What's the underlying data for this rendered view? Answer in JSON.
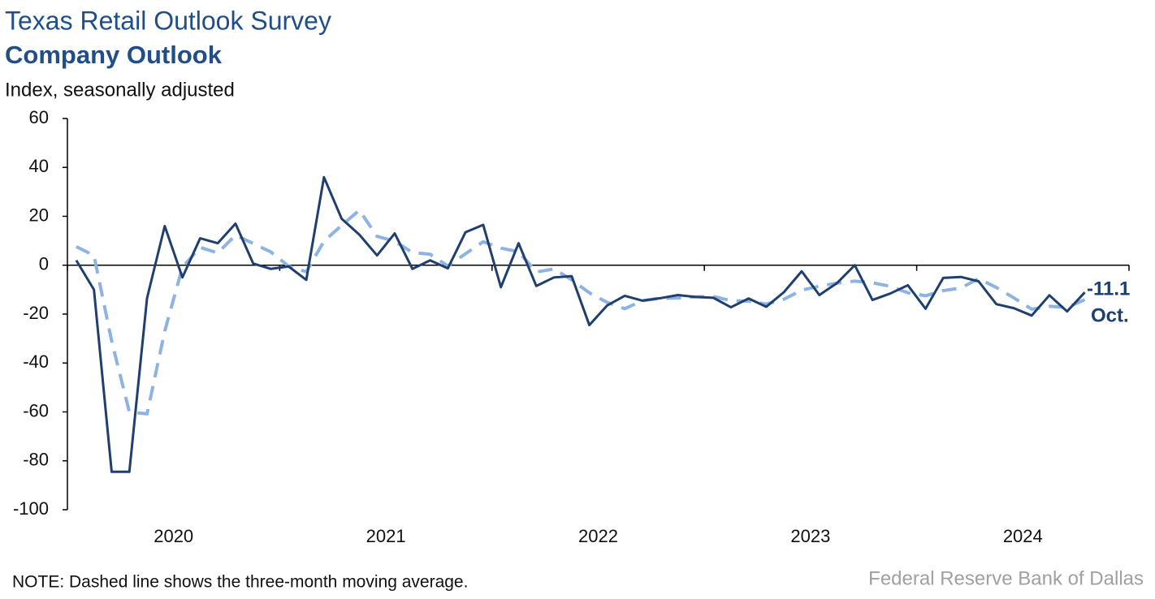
{
  "chart_data": {
    "type": "line",
    "title": "Texas Retail Outlook Survey",
    "subtitle": "Company Outlook",
    "y_label": "Index, seasonally adjusted",
    "note": "NOTE: Dashed line shows the three-month moving average.",
    "source": "Federal Reserve Bank of Dallas",
    "year_labels": [
      "2020",
      "2021",
      "2022",
      "2023",
      "2024"
    ],
    "categories": [
      null,
      null,
      null,
      null,
      null,
      null,
      null,
      null,
      null,
      null,
      null,
      null,
      null,
      null,
      null,
      null,
      null,
      null,
      null,
      null,
      null,
      null,
      null,
      null,
      null,
      null,
      null,
      null,
      null,
      null,
      null,
      null,
      null,
      null,
      null,
      null,
      null,
      null,
      null,
      null,
      null,
      null,
      null,
      null,
      null,
      null,
      null,
      null,
      null,
      null,
      null,
      null,
      null,
      null,
      null,
      null,
      null,
      null
    ],
    "ylim": [
      -100,
      60
    ],
    "yticks": [
      60,
      40,
      20,
      0,
      -20,
      -40,
      -60,
      -80,
      -100
    ],
    "series": [
      {
        "name": "Company outlook",
        "color": "#1f3f6e",
        "dashed": false,
        "values": [
          2,
          -10,
          -84.5,
          -84.5,
          -13.5,
          16,
          -5,
          11,
          9,
          17,
          0.7,
          -1.5,
          -0.5,
          -6,
          36,
          19,
          12.5,
          4,
          13,
          -1.5,
          2,
          -1.3,
          13.5,
          16.5,
          -9,
          9,
          -8.5,
          -5,
          -4.5,
          -24.5,
          -16.5,
          -12.5,
          -14.5,
          -13.5,
          -12.2,
          -13,
          -13.3,
          -17.2,
          -13.6,
          -17,
          -11,
          -2.5,
          -12.2,
          -7.3,
          0,
          -14.2,
          -11.6,
          -8.2,
          -17.8,
          -5.2,
          -4.8,
          -6.6,
          -15.9,
          -17.6,
          -20.6,
          -12.3,
          -18.9,
          -11.1
        ]
      },
      {
        "name": "Three-month moving average",
        "color": "#8db3e2",
        "dashed": true,
        "values": [
          7.6,
          4,
          -31,
          -60,
          -60.8,
          -27,
          -0.8,
          7.3,
          5,
          12.3,
          8.9,
          5.4,
          -0.4,
          -2.7,
          9.8,
          16.3,
          22.5,
          11.8,
          9.8,
          5.2,
          4.5,
          -0.3,
          4.7,
          9.6,
          7,
          5.5,
          -2.8,
          -1.5,
          -6,
          -11.3,
          -15.2,
          -17.8,
          -14.5,
          -13.5,
          -13.4,
          -12.9,
          -12.8,
          -14.5,
          -14.7,
          -15.9,
          -13.9,
          -10.2,
          -8.6,
          -7.3,
          -6.5,
          -7.2,
          -8.6,
          -11.3,
          -12.5,
          -10.4,
          -9.3,
          -5.5,
          -9.1,
          -13.4,
          -18,
          -16.8,
          -17.3,
          -14.1
        ]
      }
    ],
    "annotation": {
      "value_label": "-11.1",
      "text": "Oct."
    }
  }
}
